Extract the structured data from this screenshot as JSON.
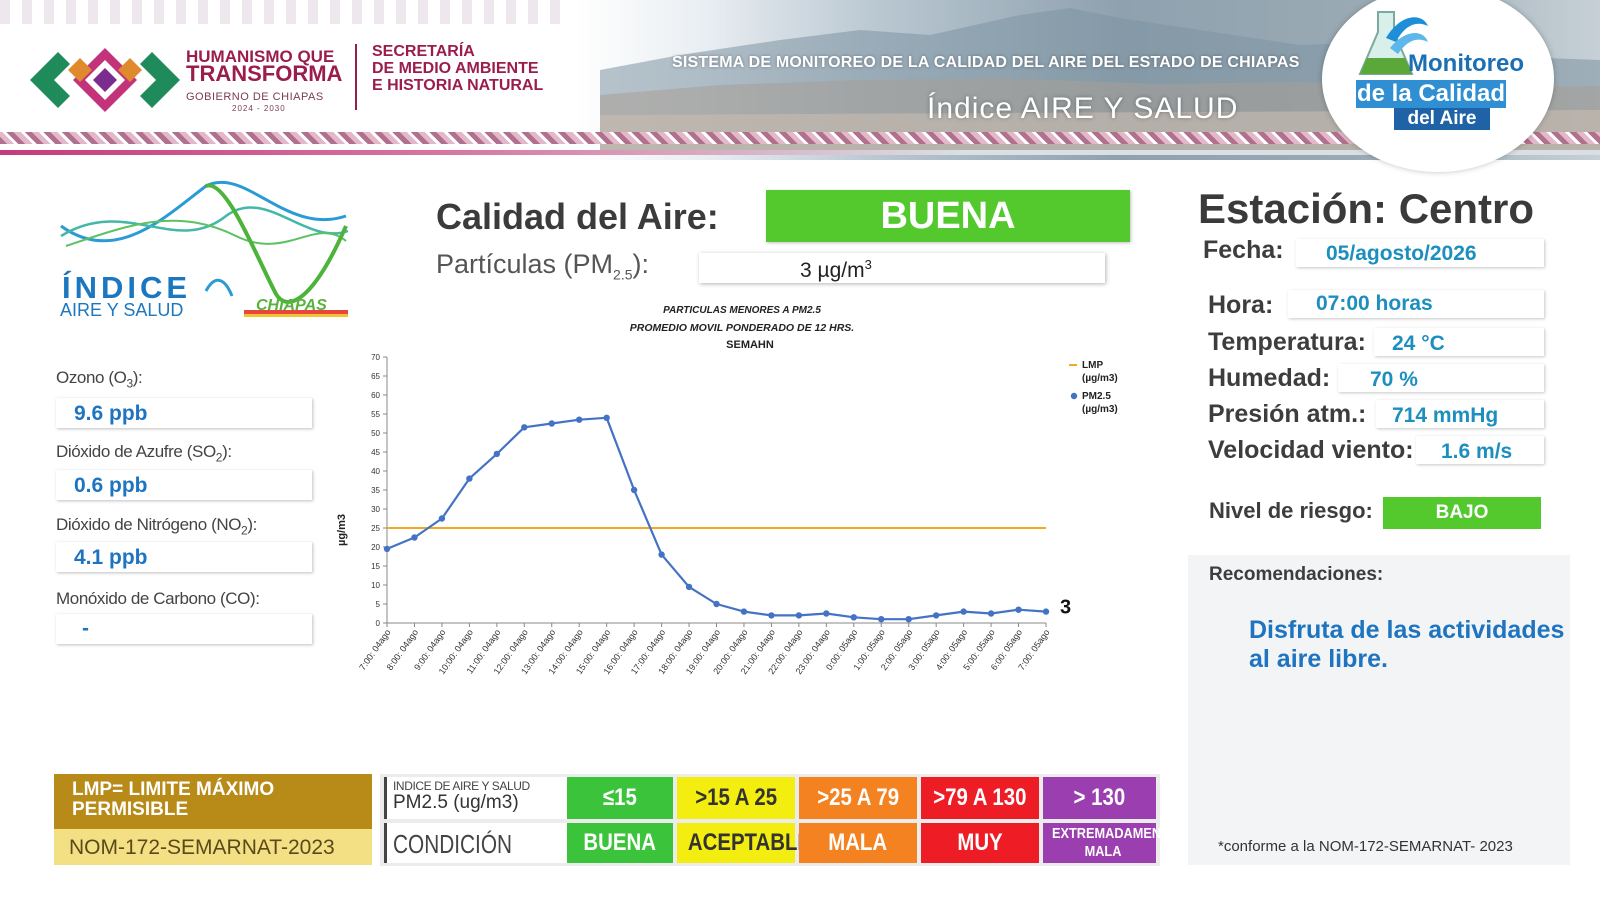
{
  "header": {
    "lema_line1": "HUMANISMO QUE",
    "lema_line2": "TRANSFORMA",
    "lema_line3": "GOBIERNO DE CHIAPAS",
    "lema_line4": "2024 - 2030",
    "secretaria_line1": "SECRETARÍA",
    "secretaria_line2": "DE MEDIO AMBIENTE",
    "secretaria_line3": "E HISTORIA NATURAL",
    "system_title": "SISTEMA DE MONITOREO DE LA CALIDAD DEL AIRE DEL ESTADO DE CHIAPAS",
    "system_subtitle": "Índice AIRE Y SALUD",
    "circle_line1": "Monitoreo",
    "circle_line2": "de la Calidad",
    "circle_line3": "del Aire"
  },
  "logo": {
    "line1": "ÍNDICE",
    "line2": "AIRE Y SALUD",
    "line3": "CHIAPAS"
  },
  "pollutants": [
    {
      "label_pre": "Ozono (O",
      "sub": "3",
      "label_post": "):",
      "value": "9.6 ppb"
    },
    {
      "label_pre": "Dióxido de Azufre (SO",
      "sub": "2",
      "label_post": "):",
      "value": "0.6 ppb"
    },
    {
      "label_pre": "Dióxido de Nitrógeno (NO",
      "sub": "2",
      "label_post": "):",
      "value": "4.1 ppb"
    },
    {
      "label_pre": "Monóxido de Carbono (CO):",
      "sub": "",
      "label_post": "",
      "value": "-"
    }
  ],
  "calidad": {
    "label": "Calidad del Aire:",
    "value": "BUENA",
    "pm_label_pre": "Partículas (PM",
    "pm_label_sub": "2.5",
    "pm_label_post": "):",
    "pm_value": "3 µg/m",
    "pm_value_sup": "3"
  },
  "estacion": {
    "label": "Estación: Centro",
    "fields": [
      {
        "label": "Fecha:",
        "value": "05/agosto/2026"
      },
      {
        "label": "Hora:",
        "value": "07:00 horas"
      },
      {
        "label": "Temperatura:",
        "value": "24 °C"
      },
      {
        "label": "Humedad:",
        "value": "70 %"
      },
      {
        "label": "Presión atm.:",
        "value": "714 mmHg"
      },
      {
        "label": "Velocidad viento:",
        "value": "1.6 m/s"
      }
    ],
    "riesgo_label": "Nivel de riesgo:",
    "riesgo_value": "BAJO",
    "recomendaciones_label": "Recomendaciones:",
    "recomendaciones_text": "Disfruta de las actividades al aire libre.",
    "nom_note": "*conforme a la NOM-172-SEMARNAT- 2023"
  },
  "legend": {
    "lmp_text": "LMP= LIMITE MÁXIMO PERMISIBLE",
    "nom_text": "NOM-172-SEMARNAT-2023",
    "header_line1": "INDICE DE AIRE Y SALUD",
    "header_line2": "PM2.5 (ug/m3)",
    "condition_label": "CONDICIÓN",
    "colors": {
      "buena": "#3bc43b",
      "aceptable": "#f3ee10",
      "mala": "#f58220",
      "muy_mala": "#ee1c25",
      "extrema": "#9b3fb0"
    },
    "ranges": [
      "≤15",
      ">15 A 25",
      ">25 A 79",
      ">79 A 130",
      "> 130"
    ],
    "conditions": [
      "BUENA",
      "ACEPTABLE",
      "MALA",
      "MUY MALA",
      "EXTREMADAMENTE MALA"
    ]
  },
  "chart_data": {
    "type": "line",
    "title_line1": "PARTICULAS MENORES A PM2.5",
    "title_line2": "PROMEDIO MOVIL PONDERADO DE 12 HRS.",
    "subtitle": "SEMAHN",
    "ylabel": "µg/m3",
    "ylim": [
      0,
      70
    ],
    "yticks": [
      0,
      5,
      10,
      15,
      20,
      25,
      30,
      35,
      40,
      45,
      50,
      55,
      60,
      65,
      70
    ],
    "categories": [
      "7:00: 04ago",
      "8:00: 04ago",
      "9:00: 04ago",
      "10:00: 04ago",
      "11:00: 04ago",
      "12:00: 04ago",
      "13:00: 04ago",
      "14:00: 04ago",
      "15:00: 04ago",
      "16:00: 04ago",
      "17:00: 04ago",
      "18:00: 04ago",
      "19:00: 04ago",
      "20:00: 04ago",
      "21:00: 04ago",
      "22:00: 04ago",
      "23:00: 04ago",
      "0:00: 05ago",
      "1:00: 05ago",
      "2:00: 05ago",
      "3:00: 05ago",
      "4:00: 05ago",
      "5:00: 05ago",
      "6:00: 05ago",
      "7:00: 05ago"
    ],
    "series": [
      {
        "name": "LMP (µg/m3)",
        "color": "#f5a623",
        "values": [
          25,
          25,
          25,
          25,
          25,
          25,
          25,
          25,
          25,
          25,
          25,
          25,
          25,
          25,
          25,
          25,
          25,
          25,
          25,
          25,
          25,
          25,
          25,
          25,
          25
        ]
      },
      {
        "name": "PM2.5 (µg/m3)",
        "color": "#4472c4",
        "values": [
          19.5,
          22.5,
          27.5,
          38,
          44.5,
          51.5,
          52.5,
          53.5,
          54,
          35,
          18,
          9.5,
          5,
          3,
          2,
          2,
          2.5,
          1.5,
          1,
          1,
          2,
          3,
          2.5,
          3.5,
          3
        ]
      }
    ],
    "last_value_label": "3",
    "legend_position": "right"
  }
}
